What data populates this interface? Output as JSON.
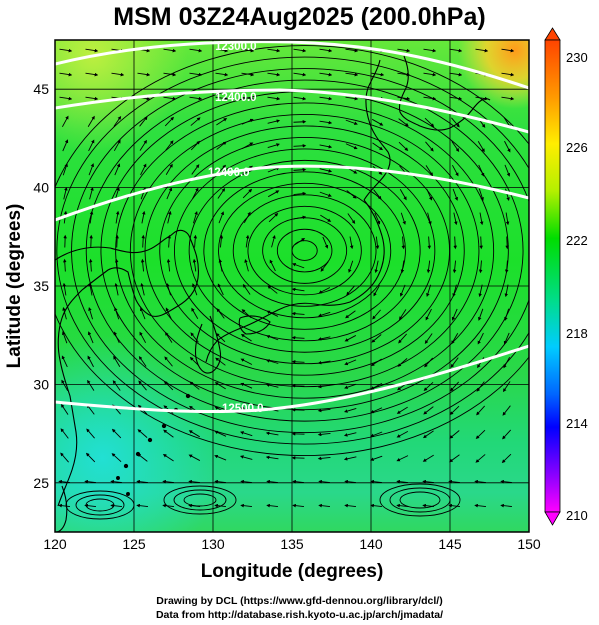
{
  "title": "MSM 03Z24Aug2025 (200.0hPa)",
  "xlabel": "Longitude (degrees)",
  "ylabel": "Latitude  (degrees)",
  "x_ticks": [
    "120",
    "125",
    "130",
    "135",
    "140",
    "145",
    "150"
  ],
  "y_ticks": [
    "25",
    "30",
    "35",
    "40",
    "45"
  ],
  "colorbar": {
    "labels": [
      "230",
      "226",
      "222",
      "218",
      "214",
      "210"
    ],
    "min": 210,
    "max": 230,
    "colors": {
      "max": "#ff4400",
      "high": "#ffee00",
      "mid": "#00dd00",
      "low1": "#00ccff",
      "low2": "#0000ff",
      "min": "#ff00ff"
    }
  },
  "contours": [
    {
      "label": "12300.0",
      "lat_mid": 47.6
    },
    {
      "label": "12400.0",
      "lat_mid": 45.5
    },
    {
      "label": "12400.0",
      "lat_mid": 41.5
    },
    {
      "label": "12500.0",
      "lat_mid": 29.5
    }
  ],
  "credits": [
    "Drawing by DCL (https://www.gfd-dennou.org/library/dcl/)",
    "Data from http://database.rish.kyoto-u.ac.jp/arch/jmadata/"
  ],
  "map_data": {
    "type": "map",
    "projection": "equirectangular",
    "xlim": [
      120,
      150
    ],
    "ylim": [
      22.5,
      47.5
    ],
    "x_ticks": [
      120,
      125,
      130,
      135,
      140,
      145,
      150
    ],
    "y_ticks": [
      25,
      30,
      35,
      40,
      45
    ],
    "field": "temperature (colored)",
    "streamlines": true,
    "anticyclone_center": [
      135.8,
      36.8
    ],
    "grid": true
  }
}
